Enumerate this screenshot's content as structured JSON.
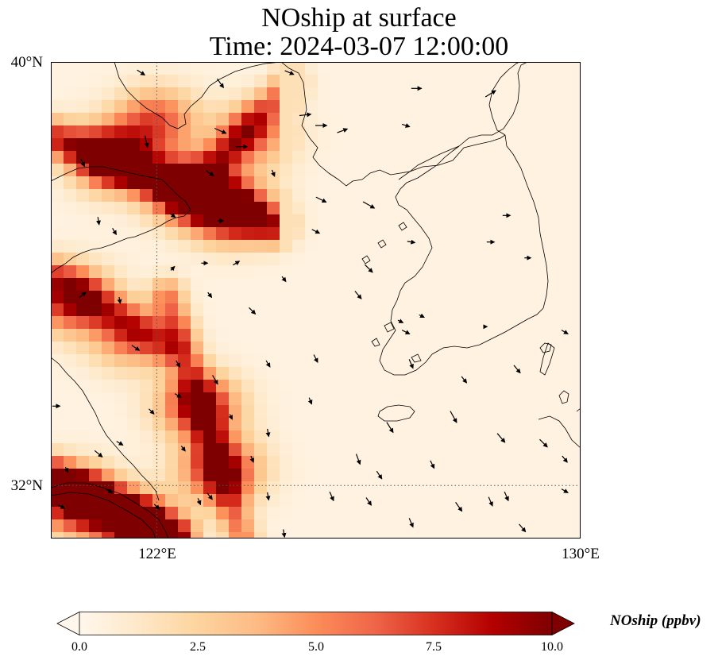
{
  "title": {
    "line1": "NOship at surface",
    "line2": "Time: 2024-03-07 12:00:00"
  },
  "axes": {
    "lat_ticks": [
      {
        "value": 40,
        "label": "40°N"
      },
      {
        "value": 32,
        "label": "32°N"
      }
    ],
    "lon_ticks": [
      {
        "value": 122,
        "label": "122°E"
      },
      {
        "value": 130,
        "label": "130°E"
      }
    ],
    "lon_range": [
      120,
      130
    ],
    "lat_range": [
      31,
      40
    ],
    "gridlines": "dotted"
  },
  "colorbar": {
    "label": "NOship (ppbv)",
    "min": 0,
    "max": 10,
    "extend": "both",
    "colormap": "OrRd",
    "ticks": [
      {
        "value": 0,
        "label": "0.0"
      },
      {
        "value": 2.5,
        "label": "2.5"
      },
      {
        "value": 5,
        "label": "5.0"
      },
      {
        "value": 7.5,
        "label": "7.5"
      },
      {
        "value": 10,
        "label": "10.0"
      }
    ],
    "colors": [
      "#fff7ec",
      "#fee8c8",
      "#fdd49e",
      "#fdbb84",
      "#fc8d59",
      "#ef6548",
      "#d7301f",
      "#b30000",
      "#7f0000"
    ]
  },
  "field": {
    "description_units": "ppbv",
    "hotspots": [
      {
        "lon": 121.2,
        "lat": 38.2,
        "value": 10
      },
      {
        "lon": 122.6,
        "lat": 37.6,
        "value": 10
      },
      {
        "lon": 123.4,
        "lat": 37.2,
        "value": 9
      },
      {
        "lon": 122.0,
        "lat": 38.9,
        "value": 6
      },
      {
        "lon": 123.8,
        "lat": 38.6,
        "value": 5
      },
      {
        "lon": 120.4,
        "lat": 35.5,
        "value": 8
      },
      {
        "lon": 121.5,
        "lat": 34.8,
        "value": 5
      },
      {
        "lon": 122.8,
        "lat": 33.5,
        "value": 8
      },
      {
        "lon": 123.2,
        "lat": 32.3,
        "value": 8
      },
      {
        "lon": 120.5,
        "lat": 31.7,
        "value": 10
      },
      {
        "lon": 121.6,
        "lat": 31.2,
        "value": 10
      }
    ]
  },
  "wind_vectors": [
    {
      "lon": 121.7,
      "lat": 39.8,
      "u": 0.6,
      "v": -0.4
    },
    {
      "lon": 123.2,
      "lat": 39.6,
      "u": 0.5,
      "v": -0.7
    },
    {
      "lon": 124.5,
      "lat": 39.8,
      "u": 0.7,
      "v": -0.3
    },
    {
      "lon": 126.9,
      "lat": 39.5,
      "u": 0.8,
      "v": 0.0
    },
    {
      "lon": 128.3,
      "lat": 39.4,
      "u": 0.8,
      "v": 0.5
    },
    {
      "lon": 124.8,
      "lat": 39.0,
      "u": 0.9,
      "v": 0.1
    },
    {
      "lon": 125.1,
      "lat": 38.8,
      "u": 0.9,
      "v": 0.0
    },
    {
      "lon": 125.5,
      "lat": 38.7,
      "u": 0.8,
      "v": 0.3
    },
    {
      "lon": 126.7,
      "lat": 38.8,
      "u": 0.6,
      "v": -0.2
    },
    {
      "lon": 123.2,
      "lat": 38.7,
      "u": 0.9,
      "v": -0.4
    },
    {
      "lon": 123.6,
      "lat": 38.4,
      "u": 0.9,
      "v": 0.0
    },
    {
      "lon": 121.8,
      "lat": 38.5,
      "u": 0.2,
      "v": -0.9
    },
    {
      "lon": 120.6,
      "lat": 38.1,
      "u": 0.3,
      "v": -0.6
    },
    {
      "lon": 123.0,
      "lat": 37.9,
      "u": 0.6,
      "v": -0.4
    },
    {
      "lon": 124.2,
      "lat": 37.9,
      "u": 0.2,
      "v": -0.5
    },
    {
      "lon": 125.1,
      "lat": 37.4,
      "u": 0.8,
      "v": -0.4
    },
    {
      "lon": 126.0,
      "lat": 37.3,
      "u": 0.9,
      "v": -0.5
    },
    {
      "lon": 128.6,
      "lat": 37.1,
      "u": 0.6,
      "v": 0.0
    },
    {
      "lon": 120.9,
      "lat": 37.0,
      "u": 0.1,
      "v": -0.6
    },
    {
      "lon": 121.2,
      "lat": 36.8,
      "u": 0.3,
      "v": -0.5
    },
    {
      "lon": 122.3,
      "lat": 37.1,
      "u": 0.4,
      "v": -0.3
    },
    {
      "lon": 123.2,
      "lat": 37.0,
      "u": 0.5,
      "v": 0.0
    },
    {
      "lon": 125.0,
      "lat": 36.8,
      "u": 0.6,
      "v": -0.3
    },
    {
      "lon": 126.8,
      "lat": 36.6,
      "u": 0.6,
      "v": -0.1
    },
    {
      "lon": 128.3,
      "lat": 36.6,
      "u": 0.6,
      "v": 0.0
    },
    {
      "lon": 129.0,
      "lat": 36.3,
      "u": 0.5,
      "v": 0.0
    },
    {
      "lon": 126.0,
      "lat": 36.1,
      "u": 0.6,
      "v": -0.6
    },
    {
      "lon": 122.3,
      "lat": 36.1,
      "u": 0.3,
      "v": 0.3
    },
    {
      "lon": 122.9,
      "lat": 36.2,
      "u": 0.5,
      "v": 0.0
    },
    {
      "lon": 123.5,
      "lat": 36.2,
      "u": 0.5,
      "v": 0.3
    },
    {
      "lon": 124.4,
      "lat": 35.9,
      "u": 0.3,
      "v": -0.4
    },
    {
      "lon": 125.8,
      "lat": 35.6,
      "u": 0.5,
      "v": -0.6
    },
    {
      "lon": 120.6,
      "lat": 35.6,
      "u": 0.5,
      "v": 0.4
    },
    {
      "lon": 121.3,
      "lat": 35.5,
      "u": 0.1,
      "v": -0.5
    },
    {
      "lon": 123.0,
      "lat": 35.6,
      "u": 0.3,
      "v": -0.4
    },
    {
      "lon": 123.8,
      "lat": 35.3,
      "u": 0.5,
      "v": -0.5
    },
    {
      "lon": 126.6,
      "lat": 35.1,
      "u": 0.4,
      "v": -0.2
    },
    {
      "lon": 127.0,
      "lat": 35.2,
      "u": 0.4,
      "v": -0.2
    },
    {
      "lon": 126.7,
      "lat": 34.9,
      "u": 0.6,
      "v": -0.3
    },
    {
      "lon": 128.2,
      "lat": 35.0,
      "u": 0.3,
      "v": 0.0
    },
    {
      "lon": 129.7,
      "lat": 34.9,
      "u": 0.5,
      "v": -0.3
    },
    {
      "lon": 121.6,
      "lat": 34.6,
      "u": 0.6,
      "v": -0.4
    },
    {
      "lon": 122.4,
      "lat": 34.3,
      "u": 0.3,
      "v": -0.5
    },
    {
      "lon": 124.1,
      "lat": 34.3,
      "u": 0.3,
      "v": -0.5
    },
    {
      "lon": 125.0,
      "lat": 34.4,
      "u": 0.3,
      "v": -0.6
    },
    {
      "lon": 126.8,
      "lat": 34.3,
      "u": 0.3,
      "v": -0.7
    },
    {
      "lon": 127.8,
      "lat": 34.0,
      "u": 0.4,
      "v": -0.5
    },
    {
      "lon": 128.8,
      "lat": 34.2,
      "u": 0.5,
      "v": -0.6
    },
    {
      "lon": 123.1,
      "lat": 34.0,
      "u": 0.4,
      "v": -0.7
    },
    {
      "lon": 124.9,
      "lat": 33.6,
      "u": 0.2,
      "v": -0.5
    },
    {
      "lon": 122.4,
      "lat": 33.7,
      "u": 0.5,
      "v": -0.3
    },
    {
      "lon": 120.1,
      "lat": 33.5,
      "u": 0.6,
      "v": 0.0
    },
    {
      "lon": 121.9,
      "lat": 33.4,
      "u": 0.4,
      "v": -0.4
    },
    {
      "lon": 123.4,
      "lat": 33.3,
      "u": 0.2,
      "v": -0.4
    },
    {
      "lon": 124.1,
      "lat": 33.0,
      "u": 0.1,
      "v": -0.6
    },
    {
      "lon": 126.4,
      "lat": 33.1,
      "u": 0.5,
      "v": -0.8
    },
    {
      "lon": 127.6,
      "lat": 33.3,
      "u": 0.5,
      "v": -0.9
    },
    {
      "lon": 128.5,
      "lat": 32.9,
      "u": 0.6,
      "v": -0.7
    },
    {
      "lon": 129.3,
      "lat": 32.8,
      "u": 0.6,
      "v": -0.6
    },
    {
      "lon": 129.7,
      "lat": 32.5,
      "u": 0.4,
      "v": -0.5
    },
    {
      "lon": 120.9,
      "lat": 32.6,
      "u": 0.6,
      "v": -0.5
    },
    {
      "lon": 121.3,
      "lat": 32.8,
      "u": 0.5,
      "v": -0.3
    },
    {
      "lon": 122.5,
      "lat": 32.7,
      "u": 0.3,
      "v": -0.4
    },
    {
      "lon": 123.8,
      "lat": 32.5,
      "u": 0.2,
      "v": -0.5
    },
    {
      "lon": 125.8,
      "lat": 32.5,
      "u": 0.3,
      "v": -0.8
    },
    {
      "lon": 126.2,
      "lat": 32.2,
      "u": 0.4,
      "v": -0.6
    },
    {
      "lon": 127.2,
      "lat": 32.4,
      "u": 0.3,
      "v": -0.6
    },
    {
      "lon": 123.0,
      "lat": 31.8,
      "u": 0.4,
      "v": -0.5
    },
    {
      "lon": 124.1,
      "lat": 31.8,
      "u": 0.1,
      "v": -0.6
    },
    {
      "lon": 125.3,
      "lat": 31.8,
      "u": 0.3,
      "v": -0.7
    },
    {
      "lon": 126.0,
      "lat": 31.7,
      "u": 0.4,
      "v": -0.6
    },
    {
      "lon": 127.7,
      "lat": 31.6,
      "u": 0.5,
      "v": -0.7
    },
    {
      "lon": 128.3,
      "lat": 31.7,
      "u": 0.3,
      "v": -0.7
    },
    {
      "lon": 128.6,
      "lat": 31.8,
      "u": 0.3,
      "v": -0.7
    },
    {
      "lon": 129.7,
      "lat": 31.9,
      "u": 0.5,
      "v": -0.3
    },
    {
      "lon": 121.1,
      "lat": 31.9,
      "u": 0.5,
      "v": -0.3
    },
    {
      "lon": 122.0,
      "lat": 31.6,
      "u": 0.4,
      "v": -0.4
    },
    {
      "lon": 122.8,
      "lat": 31.7,
      "u": 0.2,
      "v": -0.5
    },
    {
      "lon": 120.2,
      "lat": 31.6,
      "u": 0.5,
      "v": -0.3
    },
    {
      "lon": 120.3,
      "lat": 32.3,
      "u": 0.2,
      "v": -0.4
    },
    {
      "lon": 126.8,
      "lat": 31.3,
      "u": 0.3,
      "v": -0.7
    },
    {
      "lon": 124.4,
      "lat": 31.1,
      "u": 0.1,
      "v": -0.6
    },
    {
      "lon": 128.9,
      "lat": 31.2,
      "u": 0.5,
      "v": -0.6
    }
  ]
}
